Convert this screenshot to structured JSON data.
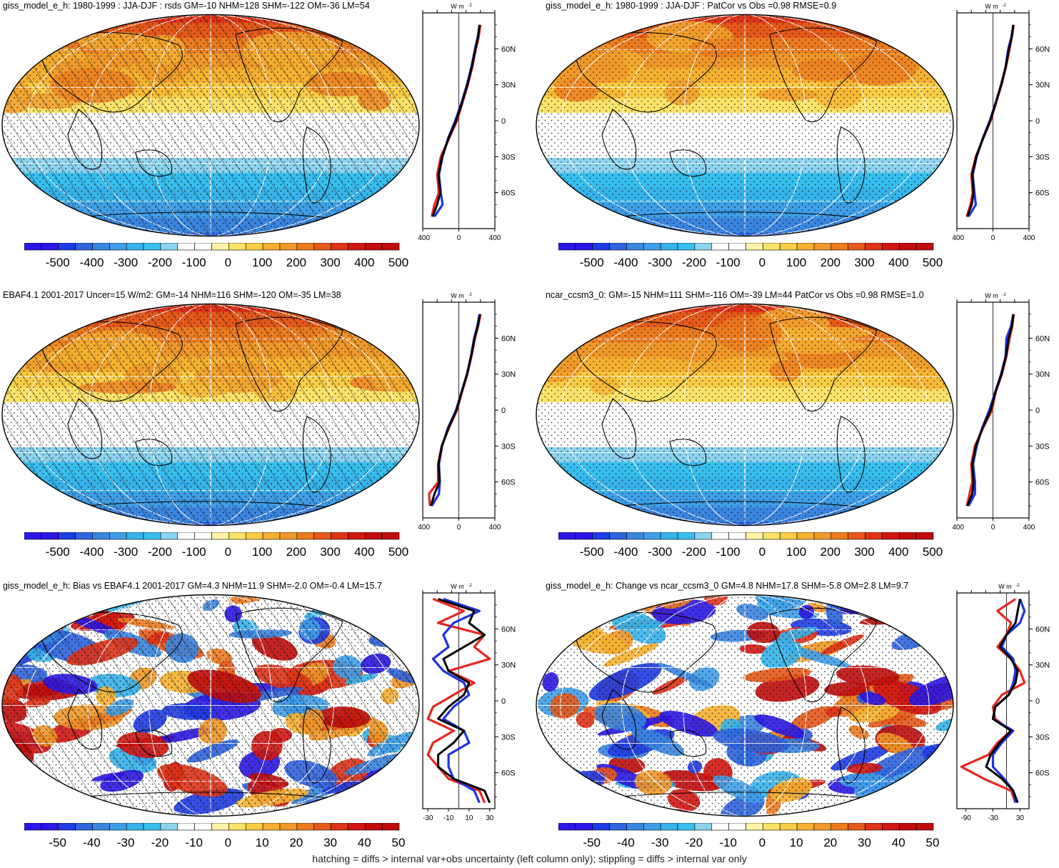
{
  "panels": [
    {
      "id": "p1",
      "title": "giss_model_e_h: 1980-1999 : JJA-DJF : rsds GM=-10 NHM=128 SHM=-122 OM=-36 LM=54",
      "kind": "field",
      "hatching": true,
      "colorbar_ticks": [
        "-500",
        "-400",
        "-300",
        "-200",
        "-100",
        "0",
        "100",
        "200",
        "300",
        "400",
        "500"
      ],
      "profile": {
        "unit": "W m",
        "unit_sup": "-2",
        "xticks": [
          "-400",
          "0",
          "400"
        ],
        "xlim": [
          -400,
          400
        ],
        "lat_ticks": [
          "60N",
          "30N",
          "0",
          "30S",
          "60S"
        ]
      }
    },
    {
      "id": "p2",
      "title": "giss_model_e_h: 1980-1999 : JJA-DJF : PatCor vs Obs =0.98 RMSE=0.9",
      "kind": "field",
      "hatching": false,
      "colorbar_ticks": [
        "-500",
        "-400",
        "-300",
        "-200",
        "-100",
        "0",
        "100",
        "200",
        "300",
        "400",
        "500"
      ],
      "profile": {
        "unit": "W m",
        "unit_sup": "-2",
        "xticks": [
          "-400",
          "0",
          "400"
        ],
        "xlim": [
          -400,
          400
        ],
        "lat_ticks": [
          "60N",
          "30N",
          "0",
          "30S",
          "60S"
        ]
      }
    },
    {
      "id": "p3",
      "title": "EBAF4.1 2001-2017 Uncer=15 W/m2: GM=-14 NHM=116 SHM=-120 OM=-35 LM=38",
      "kind": "field",
      "hatching": true,
      "colorbar_ticks": [
        "-500",
        "-400",
        "-300",
        "-200",
        "-100",
        "0",
        "100",
        "200",
        "300",
        "400",
        "500"
      ],
      "profile": {
        "unit": "W m",
        "unit_sup": "-2",
        "xticks": [
          "-400",
          "0",
          "400"
        ],
        "xlim": [
          -400,
          400
        ],
        "lat_ticks": [
          "60N",
          "30N",
          "0",
          "30S",
          "60S"
        ]
      }
    },
    {
      "id": "p4",
      "title": "ncar_ccsm3_0: GM=-15 NHM=111 SHM=-116 OM=-39 LM=44 PatCor vs Obs =0.98 RMSE=1.0",
      "kind": "field",
      "hatching": false,
      "colorbar_ticks": [
        "-500",
        "-400",
        "-300",
        "-200",
        "-100",
        "0",
        "100",
        "200",
        "300",
        "400",
        "500"
      ],
      "profile": {
        "unit": "W m",
        "unit_sup": "-2",
        "xticks": [
          "-400",
          "0",
          "400"
        ],
        "xlim": [
          -400,
          400
        ],
        "lat_ticks": [
          "60N",
          "30N",
          "0",
          "30S",
          "60S"
        ]
      }
    },
    {
      "id": "p5",
      "title": "giss_model_e_h: Bias vs EBAF4.1 2001-2017 GM=4.3 NHM=11.9 SHM=-2.0 OM=-0.4 LM=15.7",
      "kind": "bias",
      "hatching": true,
      "colorbar_ticks": [
        "-50",
        "-40",
        "-30",
        "-20",
        "-10",
        "0",
        "10",
        "20",
        "30",
        "40",
        "50"
      ],
      "profile": {
        "unit": "W m",
        "unit_sup": "-2",
        "xticks": [
          "-30",
          "-10",
          "10",
          "30"
        ],
        "xlim": [
          -35,
          35
        ],
        "lat_ticks": [
          "60N",
          "30N",
          "0",
          "30S",
          "60S"
        ]
      }
    },
    {
      "id": "p6",
      "title": "giss_model_e_h: Change vs ncar_ccsm3_0 GM=4.8 NHM=17.8 SHM=-5.8 OM=2.8 LM=9.7",
      "kind": "change",
      "hatching": false,
      "colorbar_ticks": [
        "-50",
        "-40",
        "-30",
        "-20",
        "-10",
        "0",
        "10",
        "20",
        "30",
        "40",
        "50"
      ],
      "profile": {
        "unit": "W m",
        "unit_sup": "-2",
        "xticks": [
          "-90",
          "-30",
          "30"
        ],
        "xlim": [
          -110,
          50
        ],
        "lat_ticks": [
          "60N",
          "30N",
          "0",
          "30S",
          "60S"
        ]
      }
    }
  ],
  "footer": "hatching = diffs > internal var+obs uncertainty (left column only); stippling = diffs > internal var only",
  "colors": {
    "palette": [
      "#2b17e6",
      "#1f3ce3",
      "#2f64de",
      "#3a85e0",
      "#3f9ee8",
      "#36b3ea",
      "#37bff0",
      "#8cd3ee",
      "#ffffff",
      "#ffffff",
      "#fff3a8",
      "#fbe36a",
      "#f9cd45",
      "#f6b131",
      "#f0982a",
      "#ec7b1f",
      "#e6591a",
      "#de3317",
      "#d21612",
      "#c00c0c"
    ],
    "profile_red": "#e8261f",
    "profile_blue": "#1f33e0",
    "profile_black": "#000000"
  },
  "chart_data": [
    {
      "panel": "p1",
      "type": "line",
      "title": "giss_model_e_h: 1980-1999 : JJA-DJF : rsds GM=-10 NHM=128 SHM=-122 OM=-36 LM=54",
      "ylabel": "",
      "xlabel": "W m-2",
      "xlim": [
        -400,
        400
      ],
      "ylim": [
        -90,
        90
      ],
      "series": [
        {
          "color": "red",
          "y": [
            80,
            70,
            60,
            45,
            30,
            15,
            0,
            -15,
            -30,
            -45,
            -60,
            -70,
            -80
          ],
          "x": [
            240,
            220,
            190,
            150,
            100,
            40,
            -20,
            -110,
            -200,
            -240,
            -220,
            -270,
            -300
          ]
        },
        {
          "color": "blue",
          "y": [
            80,
            70,
            60,
            45,
            30,
            15,
            0,
            -15,
            -30,
            -45,
            -60,
            -70,
            -80
          ],
          "x": [
            230,
            210,
            180,
            140,
            90,
            30,
            -40,
            -120,
            -180,
            -220,
            -200,
            -180,
            -270
          ]
        },
        {
          "color": "black",
          "y": [
            80,
            70,
            60,
            45,
            30,
            15,
            0,
            -15,
            -30,
            -45,
            -60,
            -70,
            -80
          ],
          "x": [
            230,
            215,
            185,
            145,
            95,
            35,
            -30,
            -115,
            -185,
            -225,
            -205,
            -240,
            -290
          ]
        }
      ]
    },
    {
      "panel": "p2",
      "type": "line",
      "title": "giss_model_e_h: 1980-1999 : JJA-DJF : PatCor vs Obs =0.98 RMSE=0.9",
      "ylabel": "",
      "xlabel": "W m-2",
      "xlim": [
        -400,
        400
      ],
      "ylim": [
        -90,
        90
      ],
      "series": [
        {
          "color": "red",
          "y": [
            80,
            70,
            60,
            45,
            30,
            15,
            0,
            -15,
            -30,
            -45,
            -60,
            -70,
            -80
          ],
          "x": [
            230,
            210,
            185,
            145,
            95,
            35,
            -25,
            -110,
            -190,
            -240,
            -225,
            -250,
            -290
          ]
        },
        {
          "color": "blue",
          "y": [
            80,
            70,
            60,
            45,
            30,
            15,
            0,
            -15,
            -30,
            -45,
            -60,
            -70,
            -80
          ],
          "x": [
            225,
            205,
            170,
            140,
            90,
            30,
            -35,
            -115,
            -180,
            -225,
            -205,
            -190,
            -270
          ]
        },
        {
          "color": "black",
          "y": [
            80,
            70,
            60,
            45,
            30,
            15,
            0,
            -15,
            -30,
            -45,
            -60,
            -70,
            -80
          ],
          "x": [
            228,
            208,
            178,
            142,
            92,
            32,
            -30,
            -112,
            -185,
            -230,
            -215,
            -235,
            -285
          ]
        }
      ]
    },
    {
      "panel": "p3",
      "type": "line",
      "title": "EBAF4.1 2001-2017 Uncer=15 W/m2: GM=-14 NHM=116 SHM=-120 OM=-35 LM=38",
      "ylabel": "",
      "xlabel": "W m-2",
      "xlim": [
        -400,
        400
      ],
      "ylim": [
        -90,
        90
      ],
      "series": [
        {
          "color": "red",
          "y": [
            80,
            70,
            60,
            45,
            30,
            15,
            0,
            -15,
            -30,
            -45,
            -60,
            -70,
            -80
          ],
          "x": [
            240,
            215,
            180,
            140,
            95,
            35,
            -20,
            -110,
            -190,
            -230,
            -230,
            -330,
            -320
          ]
        },
        {
          "color": "blue",
          "y": [
            80,
            70,
            60,
            45,
            30,
            15,
            0,
            -15,
            -30,
            -45,
            -60,
            -70,
            -80
          ],
          "x": [
            230,
            205,
            170,
            135,
            90,
            30,
            -30,
            -120,
            -185,
            -220,
            -210,
            -220,
            -300
          ]
        },
        {
          "color": "black",
          "y": [
            80,
            70,
            60,
            45,
            30,
            15,
            0,
            -15,
            -30,
            -45,
            -60,
            -70,
            -80
          ],
          "x": [
            235,
            210,
            175,
            138,
            92,
            32,
            -25,
            -115,
            -188,
            -225,
            -215,
            -270,
            -310
          ]
        }
      ]
    },
    {
      "panel": "p4",
      "type": "line",
      "title": "ncar_ccsm3_0: GM=-15 NHM=111 SHM=-116 OM=-39 LM=44 PatCor vs Obs =0.98 RMSE=1.0",
      "ylabel": "",
      "xlabel": "W m-2",
      "xlim": [
        -400,
        400
      ],
      "ylim": [
        -90,
        90
      ],
      "series": [
        {
          "color": "red",
          "y": [
            80,
            70,
            60,
            45,
            30,
            15,
            0,
            -15,
            -30,
            -45,
            -60,
            -70,
            -80
          ],
          "x": [
            230,
            215,
            185,
            150,
            100,
            30,
            -10,
            -110,
            -200,
            -240,
            -230,
            -260,
            -290
          ]
        },
        {
          "color": "blue",
          "y": [
            80,
            70,
            60,
            45,
            30,
            15,
            0,
            -15,
            -30,
            -45,
            -60,
            -70,
            -80
          ],
          "x": [
            225,
            200,
            150,
            140,
            90,
            25,
            -40,
            -120,
            -180,
            -220,
            -200,
            -200,
            -270
          ]
        },
        {
          "color": "black",
          "y": [
            80,
            70,
            60,
            45,
            30,
            15,
            0,
            -15,
            -30,
            -45,
            -60,
            -70,
            -80
          ],
          "x": [
            228,
            210,
            175,
            145,
            95,
            28,
            -25,
            -115,
            -190,
            -230,
            -215,
            -230,
            -285
          ]
        }
      ]
    },
    {
      "panel": "p5",
      "type": "line",
      "title": "giss_model_e_h: Bias vs EBAF4.1 2001-2017 GM=4.3 NHM=11.9 SHM=-2.0 OM=-0.4 LM=15.7",
      "ylabel": "",
      "xlabel": "W m-2",
      "xlim": [
        -35,
        35
      ],
      "ylim": [
        -90,
        90
      ],
      "series": [
        {
          "color": "red",
          "y": [
            85,
            75,
            65,
            55,
            45,
            35,
            25,
            15,
            5,
            -5,
            -15,
            -25,
            -35,
            -45,
            -55,
            -65,
            -75,
            -85
          ],
          "x": [
            -25,
            5,
            -20,
            25,
            15,
            30,
            -10,
            15,
            -5,
            -25,
            -30,
            -5,
            -25,
            -30,
            -20,
            -10,
            20,
            25
          ]
        },
        {
          "color": "blue",
          "y": [
            85,
            75,
            65,
            55,
            45,
            35,
            25,
            15,
            5,
            -5,
            -15,
            -25,
            -35,
            -45,
            -55,
            -65,
            -75,
            -85
          ],
          "x": [
            -15,
            20,
            -5,
            -15,
            -10,
            -25,
            -15,
            5,
            10,
            -5,
            -15,
            5,
            10,
            -10,
            -10,
            -5,
            15,
            20
          ]
        },
        {
          "color": "black",
          "y": [
            85,
            75,
            65,
            55,
            45,
            35,
            25,
            15,
            5,
            -5,
            -15,
            -25,
            -35,
            -45,
            -55,
            -65,
            -75,
            -85
          ],
          "x": [
            -20,
            15,
            10,
            25,
            5,
            -15,
            -10,
            10,
            5,
            -10,
            -20,
            5,
            -5,
            -20,
            -20,
            -5,
            25,
            30
          ]
        }
      ]
    },
    {
      "panel": "p6",
      "type": "line",
      "title": "giss_model_e_h: Change vs ncar_ccsm3_0 GM=4.8 NHM=17.8 SHM=-5.8 OM=2.8 LM=9.7",
      "ylabel": "",
      "xlabel": "W m-2",
      "xlim": [
        -110,
        50
      ],
      "ylim": [
        -90,
        90
      ],
      "series": [
        {
          "color": "red",
          "y": [
            85,
            75,
            65,
            55,
            45,
            35,
            25,
            15,
            5,
            -5,
            -15,
            -25,
            -35,
            -45,
            -55,
            -65,
            -75,
            -85
          ],
          "x": [
            20,
            -20,
            10,
            0,
            -20,
            10,
            30,
            40,
            -10,
            -30,
            -25,
            10,
            -20,
            -40,
            -100,
            -50,
            10,
            20
          ]
        },
        {
          "color": "blue",
          "y": [
            85,
            75,
            65,
            55,
            45,
            35,
            25,
            15,
            5,
            -5,
            -15,
            -25,
            -35,
            -45,
            -55,
            -65,
            -75,
            -85
          ],
          "x": [
            30,
            40,
            30,
            0,
            -10,
            15,
            20,
            15,
            5,
            -25,
            -30,
            15,
            -10,
            -30,
            -30,
            -5,
            15,
            20
          ]
        },
        {
          "color": "black",
          "y": [
            85,
            75,
            65,
            55,
            45,
            35,
            25,
            15,
            5,
            -5,
            -15,
            -25,
            -35,
            -45,
            -55,
            -65,
            -75,
            -85
          ],
          "x": [
            30,
            25,
            20,
            0,
            -15,
            10,
            25,
            20,
            5,
            -25,
            -30,
            10,
            -15,
            -35,
            -45,
            -10,
            15,
            25
          ]
        }
      ]
    }
  ]
}
